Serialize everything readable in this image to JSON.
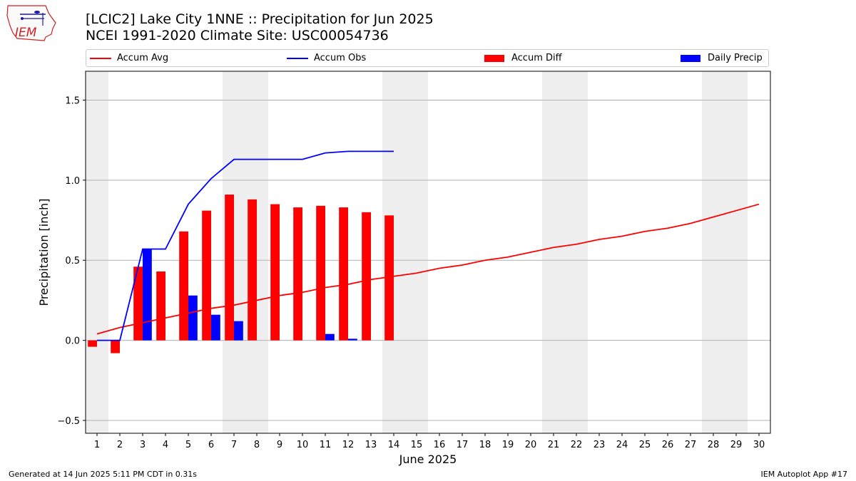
{
  "header": {
    "title_line1": "[LCIC2] Lake City 1NNE :: Precipitation for Jun 2025",
    "title_line2": "NCEI 1991-2020 Climate Site: USC00054736",
    "logo_text": "IEM"
  },
  "legend": {
    "items": [
      {
        "label": "Accum Avg",
        "kind": "line",
        "color": "#ff0000"
      },
      {
        "label": "Accum Obs",
        "kind": "line",
        "color": "#0000ff"
      },
      {
        "label": "Accum Diff",
        "kind": "bar",
        "color": "#ff0000"
      },
      {
        "label": "Daily Precip",
        "kind": "bar",
        "color": "#0000ff"
      }
    ]
  },
  "footer": {
    "generated": "Generated at 14 Jun 2025 5:11 PM CDT in 0.31s",
    "app": "IEM Autoplot App #17"
  },
  "chart_data": {
    "type": "bar",
    "xlabel": "June 2025",
    "ylabel": "Precipitation [inch]",
    "xlim": [
      0.5,
      30.5
    ],
    "ylim": [
      -0.58,
      1.68
    ],
    "yticks": [
      -0.5,
      0.0,
      0.5,
      1.0,
      1.5
    ],
    "ytick_labels": [
      "−0.5",
      "0.0",
      "0.5",
      "1.0",
      "1.5"
    ],
    "xticks": [
      1,
      2,
      3,
      4,
      5,
      6,
      7,
      8,
      9,
      10,
      11,
      12,
      13,
      14,
      15,
      16,
      17,
      18,
      19,
      20,
      21,
      22,
      23,
      24,
      25,
      26,
      27,
      28,
      29,
      30
    ],
    "grid": "horizontal",
    "weekend_shading": [
      [
        0.5,
        1.5
      ],
      [
        6.5,
        8.5
      ],
      [
        13.5,
        15.5
      ],
      [
        20.5,
        22.5
      ],
      [
        27.5,
        29.5
      ]
    ],
    "shading_color": "#eeeeee",
    "accum_avg": {
      "x": [
        1,
        2,
        3,
        4,
        5,
        6,
        7,
        8,
        9,
        10,
        11,
        12,
        13,
        14,
        15,
        16,
        17,
        18,
        19,
        20,
        21,
        22,
        23,
        24,
        25,
        26,
        27,
        28,
        29,
        30
      ],
      "values": [
        0.04,
        0.08,
        0.11,
        0.14,
        0.17,
        0.2,
        0.22,
        0.25,
        0.28,
        0.3,
        0.33,
        0.35,
        0.38,
        0.4,
        0.42,
        0.45,
        0.47,
        0.5,
        0.52,
        0.55,
        0.58,
        0.6,
        0.63,
        0.65,
        0.68,
        0.7,
        0.73,
        0.77,
        0.81,
        0.85
      ],
      "color": "#ff0000"
    },
    "accum_obs": {
      "x": [
        1,
        2,
        3,
        4,
        5,
        6,
        7,
        8,
        9,
        10,
        11,
        12,
        13,
        14
      ],
      "values": [
        0.0,
        0.0,
        0.57,
        0.57,
        0.85,
        1.01,
        1.13,
        1.13,
        1.13,
        1.13,
        1.17,
        1.18,
        1.18,
        1.18
      ],
      "color": "#0000ff"
    },
    "accum_diff": {
      "x": [
        1,
        2,
        3,
        4,
        5,
        6,
        7,
        8,
        9,
        10,
        11,
        12,
        13,
        14
      ],
      "values": [
        -0.04,
        -0.08,
        0.46,
        0.43,
        0.68,
        0.81,
        0.91,
        0.88,
        0.85,
        0.83,
        0.84,
        0.83,
        0.8,
        0.78
      ],
      "color": "#ff0000"
    },
    "daily_precip": {
      "x": [
        1,
        2,
        3,
        4,
        5,
        6,
        7,
        8,
        9,
        10,
        11,
        12,
        13,
        14
      ],
      "values": [
        0,
        0,
        0.57,
        0,
        0.28,
        0.16,
        0.12,
        0,
        0,
        0,
        0.04,
        0.01,
        0,
        0
      ],
      "color": "#0000ff"
    }
  }
}
